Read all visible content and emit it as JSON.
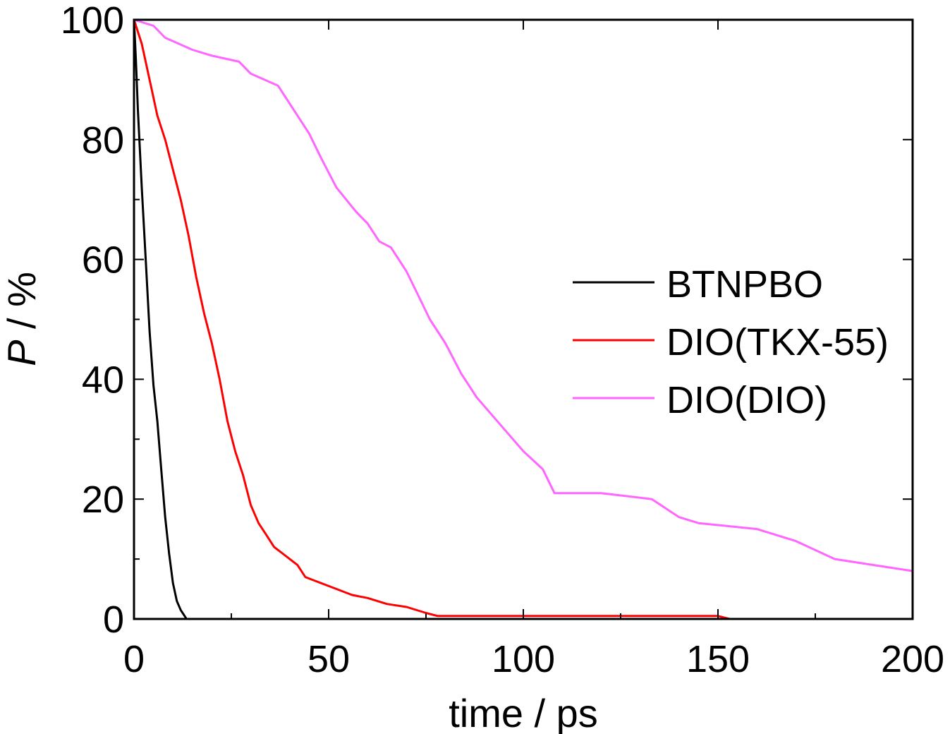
{
  "chart_data": {
    "type": "line",
    "title": "",
    "xlabel": "time / ps",
    "ylabel_italic": "P",
    "ylabel_rest": " / %",
    "xlim": [
      0,
      200
    ],
    "ylim": [
      0,
      100
    ],
    "xticks": [
      0,
      50,
      100,
      150,
      200
    ],
    "yticks": [
      0,
      20,
      40,
      60,
      80,
      100
    ],
    "x_tick_labels": [
      "0",
      "50",
      "100",
      "150",
      "200"
    ],
    "y_tick_labels": [
      "0",
      "20",
      "40",
      "60",
      "80",
      "100"
    ],
    "grid": false,
    "legend_position": "center-right",
    "series": [
      {
        "name": "BTNPBO",
        "color": "#000000",
        "x": [
          0,
          0.5,
          1,
          2,
          3,
          4,
          5,
          6,
          7,
          8,
          9,
          10,
          11,
          12,
          13,
          13.5,
          14,
          200
        ],
        "y": [
          100,
          93,
          85,
          72,
          60,
          48,
          39,
          33,
          25,
          17,
          11,
          6,
          3,
          1.5,
          0.5,
          0,
          0,
          0
        ]
      },
      {
        "name": "DIO(TKX-55)",
        "color": "#ff0000",
        "x": [
          0,
          2,
          4,
          6,
          8,
          10,
          12,
          14,
          16,
          18,
          20,
          22,
          24,
          26,
          28,
          30,
          32,
          34,
          36,
          38,
          40,
          42,
          44,
          48,
          52,
          56,
          60,
          65,
          70,
          75,
          78,
          80,
          90,
          100,
          120,
          140,
          150,
          153,
          160,
          180,
          200
        ],
        "y": [
          100,
          96,
          90,
          84,
          80,
          75,
          70,
          64,
          57,
          51,
          46,
          40,
          33,
          28,
          24,
          19,
          16,
          14,
          12,
          11,
          10,
          9,
          7,
          6,
          5,
          4,
          3.5,
          2.5,
          2,
          1,
          0.5,
          0.5,
          0.5,
          0.5,
          0.5,
          0.5,
          0.5,
          0,
          0,
          0,
          0
        ]
      },
      {
        "name": "DIO(DIO)",
        "color": "#ff66ff",
        "x": [
          0,
          5,
          8,
          15,
          20,
          27,
          30,
          37,
          40,
          45,
          48,
          52,
          57,
          60,
          63,
          66,
          70,
          73,
          76,
          80,
          84,
          88,
          92,
          96,
          100,
          105,
          108,
          112,
          120,
          133,
          140,
          145,
          160,
          170,
          180,
          190,
          200
        ],
        "y": [
          100,
          99,
          97,
          95,
          94,
          93,
          91,
          89,
          86,
          81,
          77,
          72,
          68,
          66,
          63,
          62,
          58,
          54,
          50,
          46,
          41,
          37,
          34,
          31,
          28,
          25,
          21,
          21,
          21,
          20,
          17,
          16,
          15,
          13,
          10,
          9,
          8
        ]
      }
    ]
  }
}
